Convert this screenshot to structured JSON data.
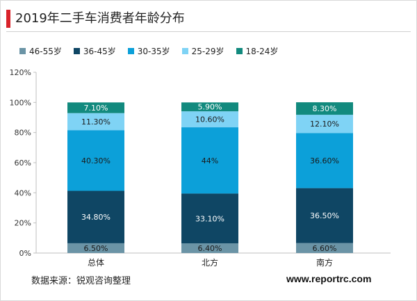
{
  "title": "2019年二手车消费者年龄分布",
  "source": "数据来源：锐观咨询整理",
  "website": "www.reportrc.com",
  "chart_data": {
    "type": "bar",
    "stacked": true,
    "categories": [
      "总体",
      "北方",
      "南方"
    ],
    "ylim": [
      0,
      120
    ],
    "yticks": [
      "0%",
      "20%",
      "40%",
      "60%",
      "80%",
      "100%",
      "120%"
    ],
    "legend_position": "top-left",
    "grid": false,
    "series": [
      {
        "name": "46-55岁",
        "color": "#6b94a6",
        "values": [
          6.5,
          6.4,
          6.6
        ],
        "labels": [
          "6.50%",
          "6.40%",
          "6.60%"
        ]
      },
      {
        "name": "36-45岁",
        "color": "#0f4664",
        "values": [
          34.8,
          33.1,
          36.5
        ],
        "labels": [
          "34.80%",
          "33.10%",
          "36.50%"
        ]
      },
      {
        "name": "30-35岁",
        "color": "#0ca0d9",
        "values": [
          40.3,
          44,
          36.6
        ],
        "labels": [
          "40.30%",
          "44%",
          "36.60%"
        ]
      },
      {
        "name": "25-29岁",
        "color": "#7fd3f5",
        "values": [
          11.3,
          10.6,
          12.1
        ],
        "labels": [
          "11.30%",
          "10.60%",
          "12.10%"
        ]
      },
      {
        "name": "18-24岁",
        "color": "#128a7e",
        "values": [
          7.1,
          5.9,
          8.3
        ],
        "labels": [
          "7.10%",
          "5.90%",
          "8.30%"
        ]
      }
    ]
  }
}
